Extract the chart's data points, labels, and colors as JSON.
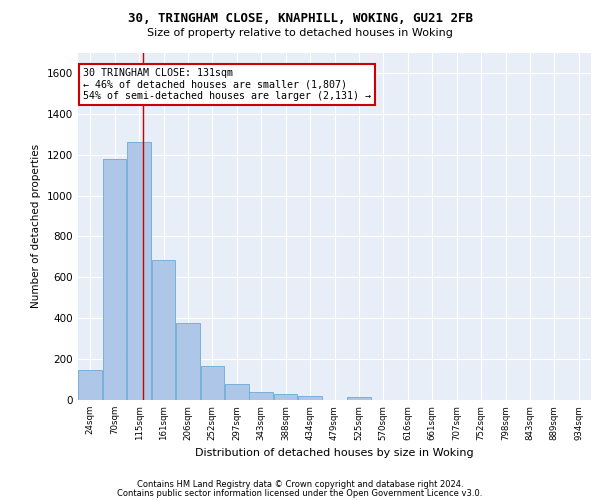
{
  "title1": "30, TRINGHAM CLOSE, KNAPHILL, WOKING, GU21 2FB",
  "title2": "Size of property relative to detached houses in Woking",
  "xlabel": "Distribution of detached houses by size in Woking",
  "ylabel": "Number of detached properties",
  "bar_color": "#aec6e8",
  "bar_edge_color": "#6aaad4",
  "background_color": "#e8eef7",
  "grid_color": "#ffffff",
  "categories": [
    "24sqm",
    "70sqm",
    "115sqm",
    "161sqm",
    "206sqm",
    "252sqm",
    "297sqm",
    "343sqm",
    "388sqm",
    "434sqm",
    "479sqm",
    "525sqm",
    "570sqm",
    "616sqm",
    "661sqm",
    "707sqm",
    "752sqm",
    "798sqm",
    "843sqm",
    "889sqm",
    "934sqm"
  ],
  "values": [
    148,
    1180,
    1262,
    686,
    375,
    168,
    80,
    38,
    28,
    20,
    0,
    15,
    0,
    0,
    0,
    0,
    0,
    0,
    0,
    0,
    0
  ],
  "ylim": [
    0,
    1700
  ],
  "yticks": [
    0,
    200,
    400,
    600,
    800,
    1000,
    1200,
    1400,
    1600
  ],
  "property_line_x": 2.18,
  "annotation_line1": "30 TRINGHAM CLOSE: 131sqm",
  "annotation_line2": "← 46% of detached houses are smaller (1,807)",
  "annotation_line3": "54% of semi-detached houses are larger (2,131) →",
  "annotation_box_color": "#ffffff",
  "annotation_border_color": "#cc0000",
  "footnote1": "Contains HM Land Registry data © Crown copyright and database right 2024.",
  "footnote2": "Contains public sector information licensed under the Open Government Licence v3.0."
}
